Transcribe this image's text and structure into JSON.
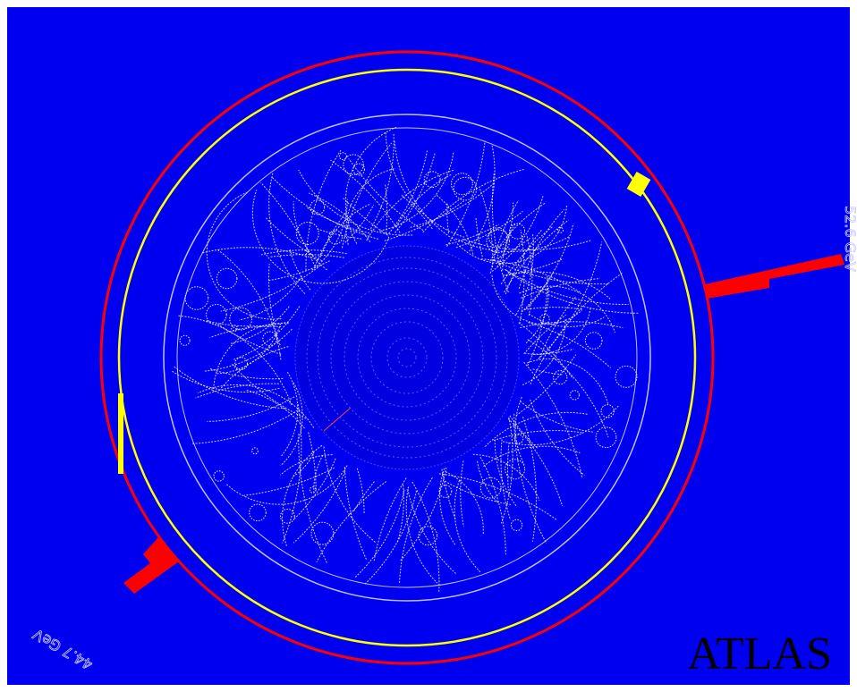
{
  "brand": "ATLAS",
  "energy_labels": [
    "44.7 GeV",
    "52.6 GeV"
  ]
}
